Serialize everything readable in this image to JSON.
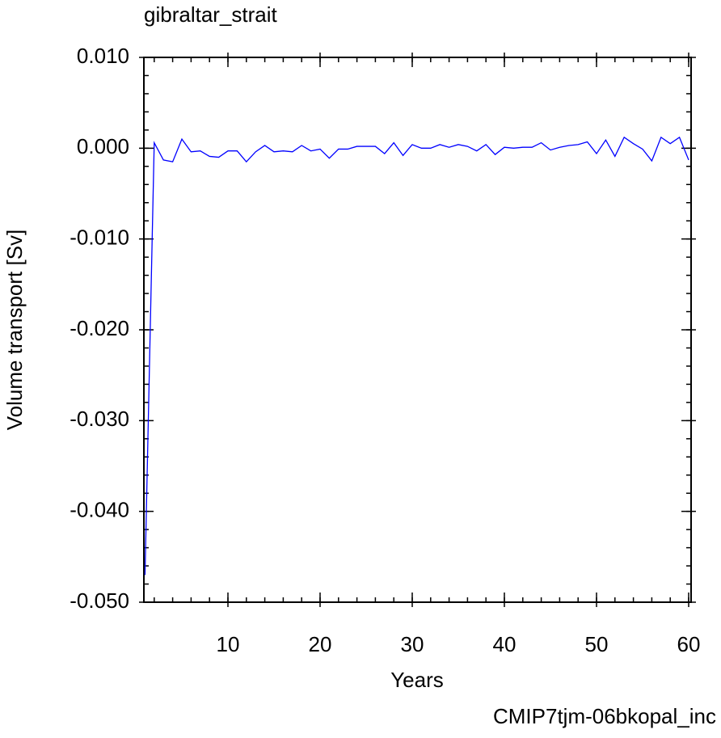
{
  "chart_data": {
    "type": "line",
    "title": "gibraltar_strait",
    "xlabel": "Years",
    "ylabel": "Volume transport [Sv]",
    "footer": "CMIP7tjm-06bkopal_inc",
    "x": [
      1,
      2,
      3,
      4,
      5,
      6,
      7,
      8,
      9,
      10,
      11,
      12,
      13,
      14,
      15,
      16,
      17,
      18,
      19,
      20,
      21,
      22,
      23,
      24,
      25,
      26,
      27,
      28,
      29,
      30,
      31,
      32,
      33,
      34,
      35,
      36,
      37,
      38,
      39,
      40,
      41,
      42,
      43,
      44,
      45,
      46,
      47,
      48,
      49,
      50,
      51,
      52,
      53,
      54,
      55,
      56,
      57,
      58,
      59,
      60
    ],
    "series": [
      {
        "name": "gibraltar_strait",
        "color": "#0000ff",
        "values": [
          -0.047,
          0.0006,
          -0.0013,
          -0.0015,
          0.001,
          -0.0004,
          -0.0003,
          -0.0009,
          -0.001,
          -0.0003,
          -0.0003,
          -0.0015,
          -0.0004,
          0.0003,
          -0.0004,
          -0.0003,
          -0.0004,
          0.0003,
          -0.0003,
          -0.0001,
          -0.0011,
          -0.0001,
          -0.0001,
          0.0002,
          0.0002,
          0.0002,
          -0.0006,
          0.0006,
          -0.0008,
          0.0004,
          0,
          0,
          0.0004,
          0.0001,
          0.0004,
          0.0002,
          -0.0003,
          0.0004,
          -0.0007,
          0.0001,
          0,
          0.0001,
          0.0001,
          0.0006,
          -0.0002,
          0.0001,
          0.0003,
          0.0004,
          0.0007,
          -0.0006,
          0.0009,
          -0.0009,
          0.0012,
          0.0005,
          -0.0001,
          -0.0014,
          0.0012,
          0.0005,
          0.0012,
          -0.0013
        ]
      }
    ],
    "xlim": [
      1,
      60
    ],
    "xticks": [
      10,
      20,
      30,
      40,
      50,
      60
    ],
    "ylim": [
      -0.05,
      0.01
    ],
    "yticks": [
      {
        "value": -0.05,
        "label": "-0.050"
      },
      {
        "value": -0.04,
        "label": "-0.040"
      },
      {
        "value": -0.03,
        "label": "-0.030"
      },
      {
        "value": -0.02,
        "label": "-0.020"
      },
      {
        "value": -0.01,
        "label": "-0.010"
      },
      {
        "value": 0,
        "label": "0.000"
      },
      {
        "value": 0.01,
        "label": "0.010"
      }
    ],
    "footer_color": "#0000ff"
  }
}
